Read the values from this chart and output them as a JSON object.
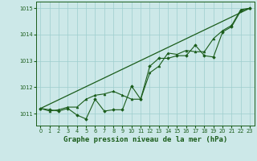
{
  "title": "Graphe pression niveau de la mer (hPa)",
  "bg_color": "#cce8e8",
  "grid_color": "#9ecece",
  "line_color": "#1a5c1a",
  "marker_color": "#1a5c1a",
  "ylim": [
    1010.55,
    1015.25
  ],
  "yticks": [
    1011,
    1012,
    1013,
    1014,
    1015
  ],
  "xlim": [
    -0.5,
    23.5
  ],
  "xticks": [
    0,
    1,
    2,
    3,
    4,
    5,
    6,
    7,
    8,
    9,
    10,
    11,
    12,
    13,
    14,
    15,
    16,
    17,
    18,
    19,
    20,
    21,
    22,
    23
  ],
  "line1_x": [
    0,
    1,
    2,
    3,
    4,
    5,
    6,
    7,
    8,
    9,
    10,
    11,
    12,
    13,
    14,
    15,
    16,
    17,
    18,
    19,
    20,
    21,
    22,
    23
  ],
  "line1": [
    1011.2,
    1011.15,
    1011.1,
    1011.2,
    1010.95,
    1010.8,
    1011.55,
    1011.1,
    1011.15,
    1011.15,
    1012.05,
    1011.55,
    1012.8,
    1013.1,
    1013.1,
    1013.2,
    1013.2,
    1013.6,
    1013.2,
    1013.15,
    1014.1,
    1014.3,
    1014.9,
    1015.0
  ],
  "line2_x": [
    0,
    1,
    2,
    3,
    4,
    5,
    6,
    7,
    8,
    9,
    10,
    11,
    12,
    13,
    14,
    15,
    16,
    17,
    18,
    19,
    20,
    21,
    22,
    23
  ],
  "line2": [
    1011.2,
    1011.1,
    1011.15,
    1011.25,
    1011.25,
    1011.55,
    1011.7,
    1011.75,
    1011.85,
    1011.7,
    1011.55,
    1011.55,
    1012.55,
    1012.8,
    1013.3,
    1013.25,
    1013.4,
    1013.35,
    1013.35,
    1013.85,
    1014.15,
    1014.35,
    1014.95,
    1015.0
  ],
  "line3_x": [
    0,
    23
  ],
  "line3_y": [
    1011.2,
    1015.0
  ],
  "title_fontsize": 6.5,
  "tick_fontsize": 4.8
}
